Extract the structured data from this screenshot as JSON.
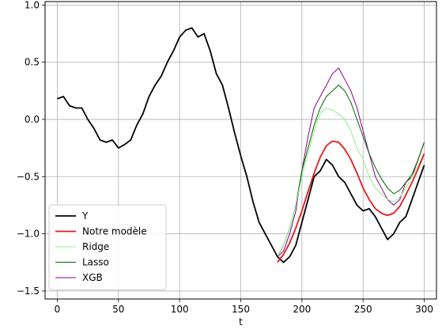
{
  "chart_data": {
    "type": "line",
    "title": "",
    "xlabel": "t",
    "ylabel": "",
    "xlim": [
      -10,
      310
    ],
    "ylim": [
      -1.57,
      1.03
    ],
    "xticks": [
      0,
      50,
      100,
      150,
      200,
      250,
      300
    ],
    "yticks": [
      1.0,
      0.5,
      0.0,
      -0.5,
      -1.0,
      -1.5
    ],
    "ytick_labels": [
      "1.0",
      "0.5",
      "0.0",
      "−0.5",
      "−1.0",
      "−1.5"
    ],
    "grid": true,
    "legend_position": "lower-left",
    "series": [
      {
        "name": "Y",
        "color": "#000000",
        "x": [
          0,
          5,
          10,
          15,
          20,
          25,
          30,
          35,
          40,
          45,
          50,
          55,
          60,
          65,
          70,
          75,
          80,
          85,
          90,
          95,
          100,
          105,
          110,
          115,
          120,
          125,
          130,
          135,
          140,
          145,
          150,
          155,
          160,
          165,
          170,
          175,
          180,
          185,
          190,
          195,
          200,
          205,
          210,
          215,
          220,
          225,
          230,
          235,
          240,
          245,
          250,
          255,
          260,
          265,
          270,
          275,
          280,
          285,
          290,
          295,
          300
        ],
        "values": [
          0.18,
          0.2,
          0.12,
          0.1,
          0.1,
          0.0,
          -0.08,
          -0.18,
          -0.2,
          -0.18,
          -0.25,
          -0.22,
          -0.18,
          -0.05,
          0.05,
          0.2,
          0.3,
          0.38,
          0.5,
          0.6,
          0.72,
          0.78,
          0.8,
          0.72,
          0.75,
          0.6,
          0.4,
          0.3,
          0.1,
          -0.12,
          -0.32,
          -0.5,
          -0.72,
          -0.9,
          -1.0,
          -1.1,
          -1.2,
          -1.25,
          -1.2,
          -1.1,
          -0.9,
          -0.7,
          -0.5,
          -0.45,
          -0.35,
          -0.4,
          -0.5,
          -0.55,
          -0.65,
          -0.75,
          -0.8,
          -0.78,
          -0.85,
          -0.95,
          -1.05,
          -1.0,
          -0.9,
          -0.85,
          -0.7,
          -0.55,
          -0.4
        ]
      },
      {
        "name": "Notre modèle",
        "color": "#e41a1c",
        "x": [
          180,
          185,
          190,
          195,
          200,
          205,
          210,
          215,
          220,
          225,
          230,
          235,
          240,
          245,
          250,
          255,
          260,
          265,
          270,
          275,
          280,
          285,
          290,
          295,
          300
        ],
        "values": [
          -1.25,
          -1.18,
          -1.08,
          -0.95,
          -0.8,
          -0.63,
          -0.47,
          -0.33,
          -0.23,
          -0.19,
          -0.2,
          -0.26,
          -0.35,
          -0.47,
          -0.6,
          -0.7,
          -0.78,
          -0.82,
          -0.84,
          -0.82,
          -0.76,
          -0.66,
          -0.55,
          -0.43,
          -0.3
        ]
      },
      {
        "name": "Ridge",
        "color": "#90ee90",
        "x": [
          180,
          185,
          190,
          195,
          200,
          205,
          210,
          215,
          220,
          225,
          230,
          235,
          240,
          245,
          250,
          255,
          260,
          265,
          270,
          275,
          280,
          285,
          290,
          295,
          300
        ],
        "values": [
          -1.2,
          -1.1,
          -0.95,
          -0.75,
          -0.5,
          -0.3,
          -0.1,
          0.05,
          0.1,
          0.08,
          0.05,
          0.0,
          -0.1,
          -0.25,
          -0.35,
          -0.5,
          -0.6,
          -0.65,
          -0.7,
          -0.72,
          -0.68,
          -0.6,
          -0.5,
          -0.4,
          -0.3
        ]
      },
      {
        "name": "Lasso",
        "color": "#006400",
        "x": [
          180,
          185,
          190,
          195,
          200,
          205,
          210,
          215,
          220,
          225,
          230,
          235,
          240,
          245,
          250,
          255,
          260,
          265,
          270,
          275,
          280,
          285,
          290,
          295,
          300
        ],
        "values": [
          -1.2,
          -1.1,
          -0.95,
          -0.75,
          -0.45,
          -0.25,
          -0.05,
          0.1,
          0.2,
          0.25,
          0.3,
          0.25,
          0.15,
          0.0,
          -0.15,
          -0.3,
          -0.42,
          -0.52,
          -0.6,
          -0.65,
          -0.62,
          -0.55,
          -0.48,
          -0.35,
          -0.2
        ]
      },
      {
        "name": "XGB",
        "color": "#8b008b",
        "x": [
          180,
          185,
          190,
          195,
          200,
          205,
          210,
          215,
          220,
          225,
          230,
          235,
          240,
          245,
          250,
          255,
          260,
          265,
          270,
          275,
          280,
          285,
          290,
          295,
          300
        ],
        "values": [
          -1.2,
          -1.15,
          -1.0,
          -0.8,
          -0.45,
          -0.15,
          0.1,
          0.2,
          0.3,
          0.4,
          0.45,
          0.35,
          0.25,
          0.1,
          -0.1,
          -0.3,
          -0.5,
          -0.6,
          -0.7,
          -0.75,
          -0.7,
          -0.55,
          -0.5,
          -0.35,
          -0.2
        ]
      }
    ]
  }
}
